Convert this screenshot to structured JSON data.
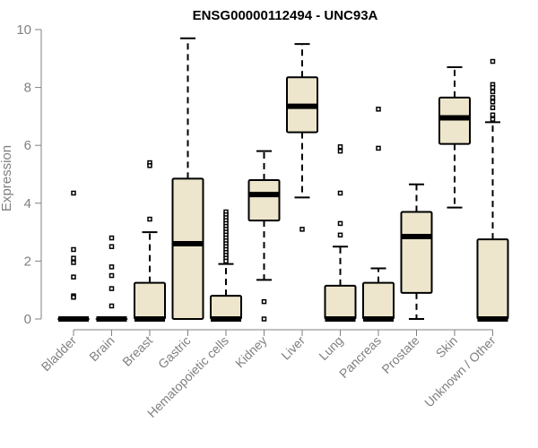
{
  "chart_data": {
    "type": "box",
    "title": "ENSG00000112494 - UNC93A",
    "xlabel": "",
    "ylabel": "Expression",
    "ylim": [
      0,
      10
    ],
    "yticks": [
      0,
      2,
      4,
      6,
      8,
      10
    ],
    "grid": false,
    "colors": {
      "box_fill": "#ede6cc",
      "stroke": "#000000",
      "axis": "#808080",
      "text": "#808080"
    },
    "categories": [
      "Bladder",
      "Brain",
      "Breast",
      "Gastric",
      "Hematopoietic cells",
      "Kidney",
      "Liver",
      "Lung",
      "Pancreas",
      "Prostate",
      "Skin",
      "Unknown / Other"
    ],
    "boxes": [
      {
        "category": "Bladder",
        "q1": 0,
        "median": 0,
        "q3": 0,
        "whisker_low": 0,
        "whisker_high": 0,
        "outliers": [
          4.35,
          2.4,
          2.1,
          1.95,
          1.45,
          0.8,
          0.75
        ]
      },
      {
        "category": "Brain",
        "q1": 0,
        "median": 0,
        "q3": 0,
        "whisker_low": 0,
        "whisker_high": 0,
        "outliers": [
          2.8,
          2.5,
          1.8,
          1.5,
          1.05,
          0.45
        ]
      },
      {
        "category": "Breast",
        "q1": 0,
        "median": 0,
        "q3": 1.25,
        "whisker_low": 0,
        "whisker_high": 3.0,
        "outliers": [
          5.4,
          5.3,
          3.45
        ]
      },
      {
        "category": "Gastric",
        "q1": 0,
        "median": 2.6,
        "q3": 4.85,
        "whisker_low": 0,
        "whisker_high": 9.7,
        "outliers": []
      },
      {
        "category": "Hematopoietic cells",
        "q1": 0,
        "median": 0,
        "q3": 0.8,
        "whisker_low": 0,
        "whisker_high": 1.9,
        "outliers": [
          3.7,
          3.6,
          3.5,
          3.4,
          3.3,
          3.2,
          3.1,
          3.0,
          2.9,
          2.8,
          2.7,
          2.6,
          2.5,
          2.4,
          2.3,
          2.2,
          2.1,
          2.0
        ]
      },
      {
        "category": "Kidney",
        "q1": 3.4,
        "median": 4.3,
        "q3": 4.8,
        "whisker_low": 1.35,
        "whisker_high": 5.8,
        "outliers": [
          0.6,
          0.0
        ]
      },
      {
        "category": "Liver",
        "q1": 6.45,
        "median": 7.35,
        "q3": 8.35,
        "whisker_low": 4.2,
        "whisker_high": 9.5,
        "outliers": [
          3.1
        ]
      },
      {
        "category": "Lung",
        "q1": 0,
        "median": 0,
        "q3": 1.15,
        "whisker_low": 0,
        "whisker_high": 2.5,
        "outliers": [
          5.95,
          5.8,
          4.35,
          3.3,
          2.9
        ]
      },
      {
        "category": "Pancreas",
        "q1": 0,
        "median": 0,
        "q3": 1.25,
        "whisker_low": 0,
        "whisker_high": 1.75,
        "outliers": [
          7.25,
          5.9
        ]
      },
      {
        "category": "Prostate",
        "q1": 0.9,
        "median": 2.85,
        "q3": 3.7,
        "whisker_low": 0,
        "whisker_high": 4.65,
        "outliers": []
      },
      {
        "category": "Skin",
        "q1": 6.05,
        "median": 6.95,
        "q3": 7.65,
        "whisker_low": 3.85,
        "whisker_high": 8.7,
        "outliers": []
      },
      {
        "category": "Unknown / Other",
        "q1": 0,
        "median": 0,
        "q3": 2.75,
        "whisker_low": 0,
        "whisker_high": 6.8,
        "outliers": [
          8.9,
          8.1,
          8.0,
          7.85,
          7.65,
          7.5,
          7.3,
          7.05,
          6.9
        ]
      }
    ]
  }
}
